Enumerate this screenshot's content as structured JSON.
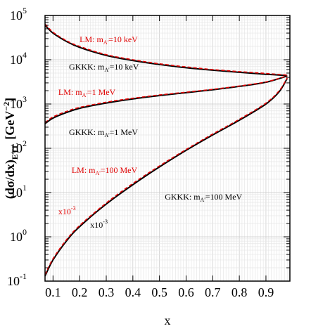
{
  "chart_data": {
    "type": "line",
    "xlabel": "x",
    "ylabel": "(dσ/dx)",
    "ylabel_subscript": "ETL",
    "ylabel_units": "[GeV",
    "ylabel_exponent": "−2",
    "ylabel_units_close": "]",
    "xlim": [
      0.07,
      0.99
    ],
    "ylim": [
      0.1,
      100000
    ],
    "yscale": "log",
    "grid": true,
    "x_ticks": [
      "0.1",
      "0.2",
      "0.3",
      "0.4",
      "0.5",
      "0.6",
      "0.7",
      "0.8",
      "0.9"
    ],
    "y_ticks": [
      {
        "base": "10",
        "exp": "5",
        "value": 100000
      },
      {
        "base": "10",
        "exp": "4",
        "value": 10000
      },
      {
        "base": "10",
        "exp": "3",
        "value": 1000
      },
      {
        "base": "10",
        "exp": "2",
        "value": 100
      },
      {
        "base": "10",
        "exp": "1",
        "value": 10
      },
      {
        "base": "10",
        "exp": "0",
        "value": 1
      },
      {
        "base": "10",
        "exp": "-1",
        "value": 0.1
      }
    ],
    "series": [
      {
        "model": "GKKK",
        "mass": "10 keV",
        "color": "#000000",
        "dash": "",
        "x": [
          0.07,
          0.1,
          0.15,
          0.2,
          0.3,
          0.4,
          0.5,
          0.6,
          0.7,
          0.8,
          0.9,
          0.98
        ],
        "y": [
          60000,
          40000,
          26000,
          19000,
          12500,
          9600,
          7800,
          6600,
          5800,
          5200,
          4700,
          4400
        ]
      },
      {
        "model": "LM",
        "mass": "10 keV",
        "color": "#e00000",
        "dash": "5,3",
        "x": [
          0.07,
          0.1,
          0.15,
          0.2,
          0.3,
          0.4,
          0.5,
          0.6,
          0.7,
          0.8,
          0.9,
          0.98
        ],
        "y": [
          64000,
          42000,
          27000,
          20000,
          13000,
          10000,
          8100,
          6900,
          6000,
          5400,
          4900,
          4500
        ]
      },
      {
        "model": "GKKK",
        "mass": "1 MeV",
        "color": "#000000",
        "dash": "",
        "x": [
          0.07,
          0.1,
          0.15,
          0.2,
          0.3,
          0.4,
          0.5,
          0.6,
          0.7,
          0.8,
          0.9,
          0.98
        ],
        "y": [
          360,
          480,
          640,
          800,
          1050,
          1300,
          1550,
          1800,
          2100,
          2500,
          3100,
          4300
        ]
      },
      {
        "model": "LM",
        "mass": "1 MeV",
        "color": "#e00000",
        "dash": "5,3",
        "x": [
          0.07,
          0.1,
          0.15,
          0.2,
          0.3,
          0.4,
          0.5,
          0.6,
          0.7,
          0.8,
          0.9,
          0.98
        ],
        "y": [
          380,
          510,
          680,
          840,
          1100,
          1350,
          1600,
          1850,
          2150,
          2550,
          3150,
          4350
        ]
      },
      {
        "model": "GKKK",
        "mass": "100 MeV",
        "color": "#000000",
        "dash": "",
        "x": [
          0.07,
          0.1,
          0.15,
          0.2,
          0.3,
          0.4,
          0.5,
          0.6,
          0.7,
          0.8,
          0.9,
          0.95,
          0.98
        ],
        "y": [
          0.13,
          0.3,
          0.8,
          1.7,
          5.5,
          15,
          38,
          90,
          200,
          430,
          1000,
          1900,
          3800
        ]
      },
      {
        "model": "LM",
        "mass": "100 MeV",
        "color": "#e00000",
        "dash": "5,3",
        "x": [
          0.07,
          0.1,
          0.15,
          0.2,
          0.3,
          0.4,
          0.5,
          0.6,
          0.7,
          0.8,
          0.9,
          0.95,
          0.98
        ],
        "y": [
          0.14,
          0.32,
          0.85,
          1.8,
          5.8,
          16,
          40,
          94,
          210,
          450,
          1050,
          2000,
          3900
        ]
      }
    ],
    "annotations": [
      {
        "prefix": "LM: m",
        "sub": "A'",
        "suffix": "=10 keV",
        "color": "#e00000",
        "x": 0.2,
        "y": 25000
      },
      {
        "prefix": "GKKK: m",
        "sub": "A'",
        "suffix": "=10 keV",
        "color": "#000000",
        "x": 0.16,
        "y": 6000
      },
      {
        "prefix": "LM: m",
        "sub": "A'",
        "suffix": "=1 MeV",
        "color": "#e00000",
        "x": 0.12,
        "y": 1600
      },
      {
        "prefix": "GKKK: m",
        "sub": "A'",
        "suffix": "=1 MeV",
        "color": "#000000",
        "x": 0.16,
        "y": 200
      },
      {
        "prefix": "LM: m",
        "sub": "A'",
        "suffix": "=100 MeV",
        "color": "#e00000",
        "x": 0.17,
        "y": 28
      },
      {
        "prefix": "GKKK: m",
        "sub": "A'",
        "suffix": "=100 MeV",
        "color": "#000000",
        "x": 0.52,
        "y": 7
      },
      {
        "prefix": "x10",
        "sub": "",
        "suffix": "",
        "sup": "-3",
        "color": "#e00000",
        "x": 0.12,
        "y": 3.2
      },
      {
        "prefix": "x10",
        "sub": "",
        "suffix": "",
        "sup": "-3",
        "color": "#000000",
        "x": 0.24,
        "y": 1.6
      }
    ]
  }
}
